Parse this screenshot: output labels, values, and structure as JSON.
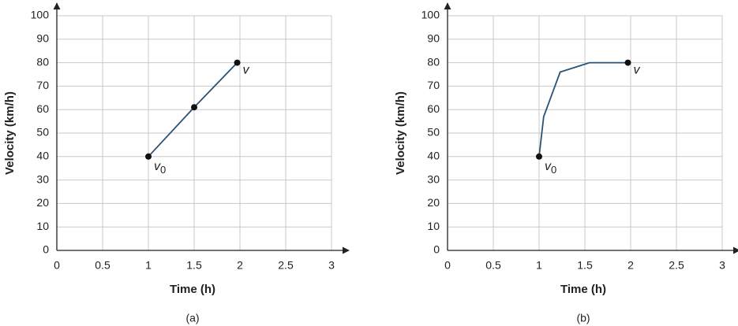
{
  "chart_data": [
    {
      "type": "line",
      "caption": "(a)",
      "xlabel": "Time (h)",
      "ylabel": "Velocity (km/h)",
      "xlim": [
        0,
        3
      ],
      "xticks": [
        0,
        0.5,
        1,
        1.5,
        2,
        2.5,
        3
      ],
      "ylim": [
        0,
        100
      ],
      "yticks": [
        0,
        10,
        20,
        30,
        40,
        50,
        60,
        70,
        80,
        90,
        100
      ],
      "grid": true,
      "series": [
        {
          "color": "#2b5275",
          "x": [
            1,
            1.5,
            1.97
          ],
          "values": [
            40,
            61,
            80
          ],
          "markers": [
            true,
            true,
            true
          ],
          "point_labels": [
            {
              "text": "v",
              "sub": "0"
            },
            null,
            {
              "text": "v"
            }
          ]
        }
      ]
    },
    {
      "type": "line",
      "caption": "(b)",
      "xlabel": "Time (h)",
      "ylabel": "Velocity (km/h)",
      "xlim": [
        0,
        3
      ],
      "xticks": [
        0,
        0.5,
        1,
        1.5,
        2,
        2.5,
        3
      ],
      "ylim": [
        0,
        100
      ],
      "yticks": [
        0,
        10,
        20,
        30,
        40,
        50,
        60,
        70,
        80,
        90,
        100
      ],
      "grid": true,
      "series": [
        {
          "color": "#2b5275",
          "x": [
            1,
            1.05,
            1.23,
            1.55,
            1.97
          ],
          "values": [
            40,
            57,
            76,
            80,
            80
          ],
          "markers": [
            true,
            false,
            false,
            false,
            true
          ],
          "point_labels": [
            {
              "text": "v",
              "sub": "0"
            },
            null,
            null,
            null,
            {
              "text": "v"
            }
          ]
        }
      ]
    }
  ]
}
